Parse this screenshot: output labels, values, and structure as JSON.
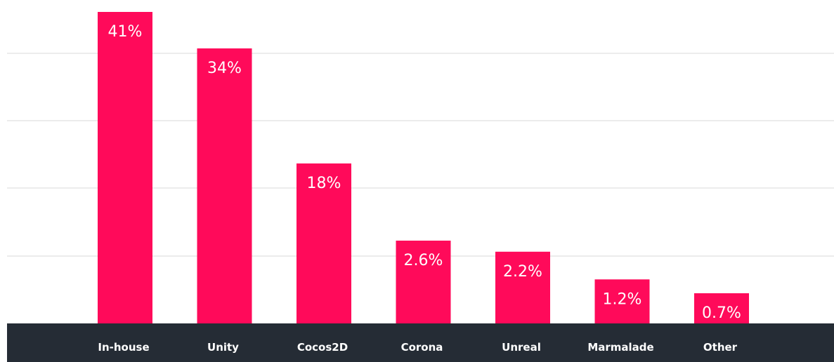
{
  "chart_data": {
    "type": "bar",
    "categories": [
      "In-house",
      "Unity",
      "Cocos2D",
      "Corona",
      "Unreal",
      "Marmalade",
      "Other"
    ],
    "values": [
      41,
      34,
      18,
      2.6,
      2.2,
      1.2,
      0.7
    ],
    "data_labels": [
      "41%",
      "34%",
      "18%",
      "2.6%",
      "2.2%",
      "1.2%",
      "0.7%"
    ],
    "title": "",
    "xlabel": "",
    "ylabel": "",
    "grid": true,
    "legend": "none",
    "colors": {
      "bar": "#ff0a5a",
      "axis_band": "#252c35",
      "gridline": "#ececec",
      "label_text": "#ffffff"
    }
  }
}
